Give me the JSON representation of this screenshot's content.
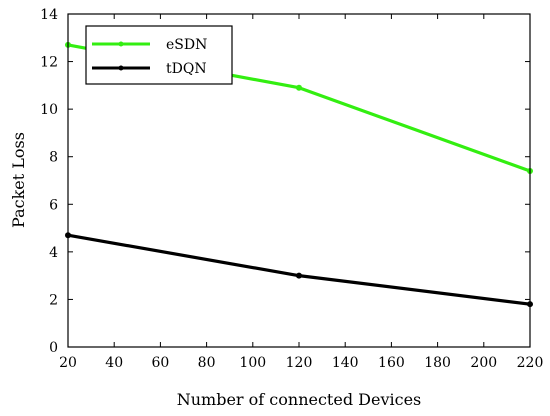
{
  "chart_data": {
    "type": "line",
    "xlabel": "Number of connected Devices",
    "ylabel": "Packet Loss",
    "xlim": [
      20,
      220
    ],
    "ylim": [
      0,
      14
    ],
    "xticks": [
      20,
      40,
      60,
      80,
      100,
      120,
      140,
      160,
      180,
      200,
      220
    ],
    "yticks": [
      0,
      2,
      4,
      6,
      8,
      10,
      12,
      14
    ],
    "grid": false,
    "legend_position": "top-left",
    "series": [
      {
        "name": "eSDN",
        "color": "#33ee11",
        "x": [
          20,
          120,
          220
        ],
        "y": [
          12.7,
          10.9,
          7.4
        ]
      },
      {
        "name": "tDQN",
        "color": "#000000",
        "x": [
          20,
          120,
          220
        ],
        "y": [
          4.7,
          3.0,
          1.8
        ]
      }
    ]
  }
}
